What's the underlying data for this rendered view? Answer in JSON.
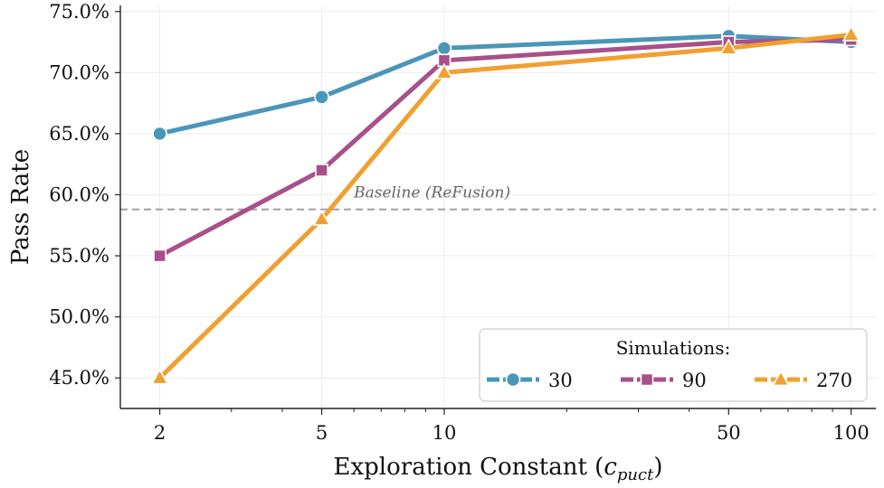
{
  "chart_data": {
    "type": "line",
    "xscale": "log",
    "x": [
      2,
      5,
      10,
      50,
      100
    ],
    "x_tick_labels": [
      "2",
      "5",
      "10",
      "50",
      "100"
    ],
    "xlim": [
      1.6,
      115
    ],
    "ylim": [
      42.5,
      75.5
    ],
    "y_ticks": [
      45,
      50,
      55,
      60,
      65,
      70,
      75
    ],
    "y_tick_labels": [
      "45.0%",
      "50.0%",
      "55.0%",
      "60.0%",
      "65.0%",
      "70.0%",
      "75.0%"
    ],
    "xlabel_main": "Exploration Constant (",
    "xlabel_var": "c",
    "xlabel_sub": "puct",
    "xlabel_close": ")",
    "ylabel": "Pass Rate",
    "baseline": {
      "value": 58.8,
      "label": "Baseline (ReFusion)",
      "color": "#a0a0a0"
    },
    "legend": {
      "title": "Simulations:",
      "placement": "lower-right"
    },
    "series": [
      {
        "name": "30",
        "color": "#4a96b8",
        "marker": "circle",
        "values": [
          65.0,
          68.0,
          72.0,
          73.0,
          72.5
        ]
      },
      {
        "name": "90",
        "color": "#a8508a",
        "marker": "square",
        "values": [
          55.0,
          62.0,
          71.0,
          72.5,
          72.7
        ]
      },
      {
        "name": "270",
        "color": "#f0a030",
        "marker": "triangle",
        "values": [
          45.0,
          58.0,
          70.0,
          72.0,
          73.1
        ]
      }
    ]
  }
}
